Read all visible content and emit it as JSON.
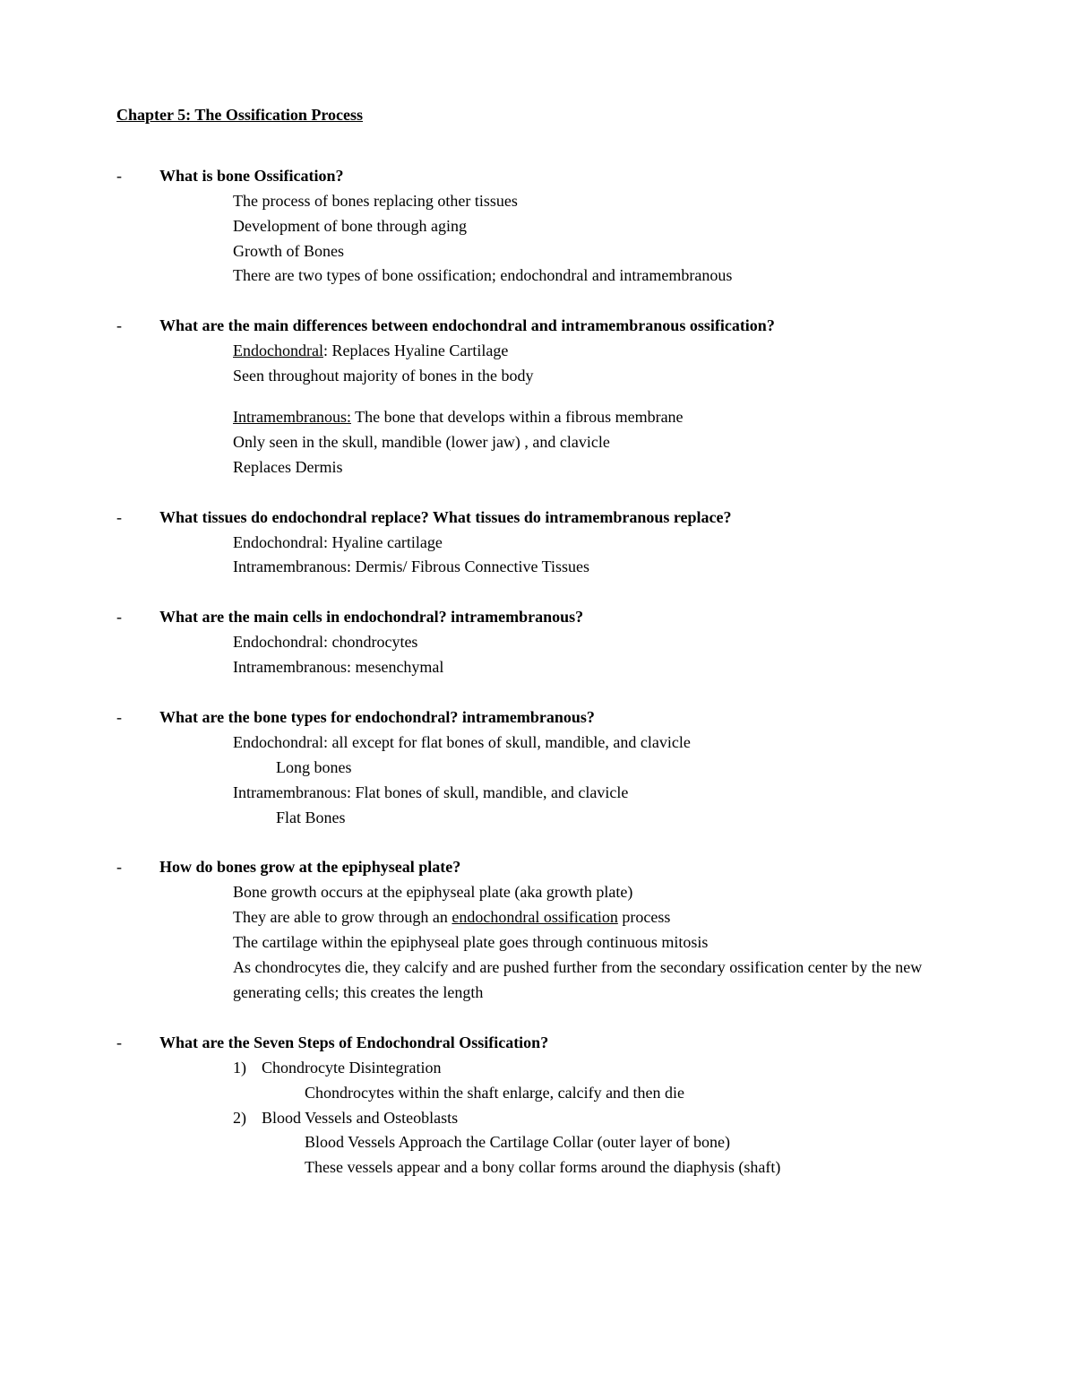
{
  "title": "Chapter 5: The Ossification Process",
  "dash": "-",
  "s1": {
    "q": "What is bone Ossification?",
    "a1": "The process of bones replacing other tissues",
    "a2": "Development of bone through aging",
    "a3": "Growth of Bones",
    "a4": "There are two types of bone ossification; endochondral and intramembranous"
  },
  "s2": {
    "q": "What are the main differences between endochondral and intramembranous ossification?",
    "a1_label": "Endochondral",
    "a1_rest": ": Replaces Hyaline Cartilage",
    "a2": "Seen throughout majority of bones in the body",
    "a3_label": "Intramembranous:",
    "a3_rest": " The bone that develops within a fibrous membrane",
    "a4": "Only seen in the skull, mandible (lower jaw) , and clavicle",
    "a5": "Replaces Dermis"
  },
  "s3": {
    "q": "What tissues do endochondral replace? What tissues do intramembranous replace?",
    "a1": "Endochondral: Hyaline cartilage",
    "a2": "Intramembranous: Dermis/ Fibrous Connective Tissues"
  },
  "s4": {
    "q": "What are the main cells in endochondral? intramembranous?",
    "a1": "Endochondral: chondrocytes",
    "a2": "Intramembranous: mesenchymal"
  },
  "s5": {
    "q": "What are the bone types for endochondral? intramembranous?",
    "a1": "Endochondral: all except for flat bones of skull, mandible, and clavicle",
    "a1b": "Long bones",
    "a2": "Intramembranous: Flat bones of skull, mandible, and clavicle",
    "a2b": "Flat Bones"
  },
  "s6": {
    "q": "How do bones grow at the epiphyseal plate?",
    "a1": "Bone growth occurs at the epiphyseal plate (aka growth plate)",
    "a2_pre": "They are able to grow through an ",
    "a2_u": "endochondral ossification",
    "a2_post": " process",
    "a3": "The cartilage within the epiphyseal plate goes through continuous mitosis",
    "a4": "As chondrocytes die, they calcify and are pushed further from the secondary ossification center by the new generating cells; this creates the length"
  },
  "s7": {
    "q": "What are the Seven Steps of Endochondral Ossification?",
    "n1": "1)",
    "t1": "Chondrocyte Disintegration",
    "d1": "Chondrocytes within the shaft enlarge, calcify and then die",
    "n2": "2)",
    "t2": "Blood Vessels and Osteoblasts",
    "d2a": "Blood Vessels Approach the Cartilage Collar (outer layer of bone)",
    "d2b": "These vessels appear and a bony collar forms around the diaphysis (shaft)"
  }
}
